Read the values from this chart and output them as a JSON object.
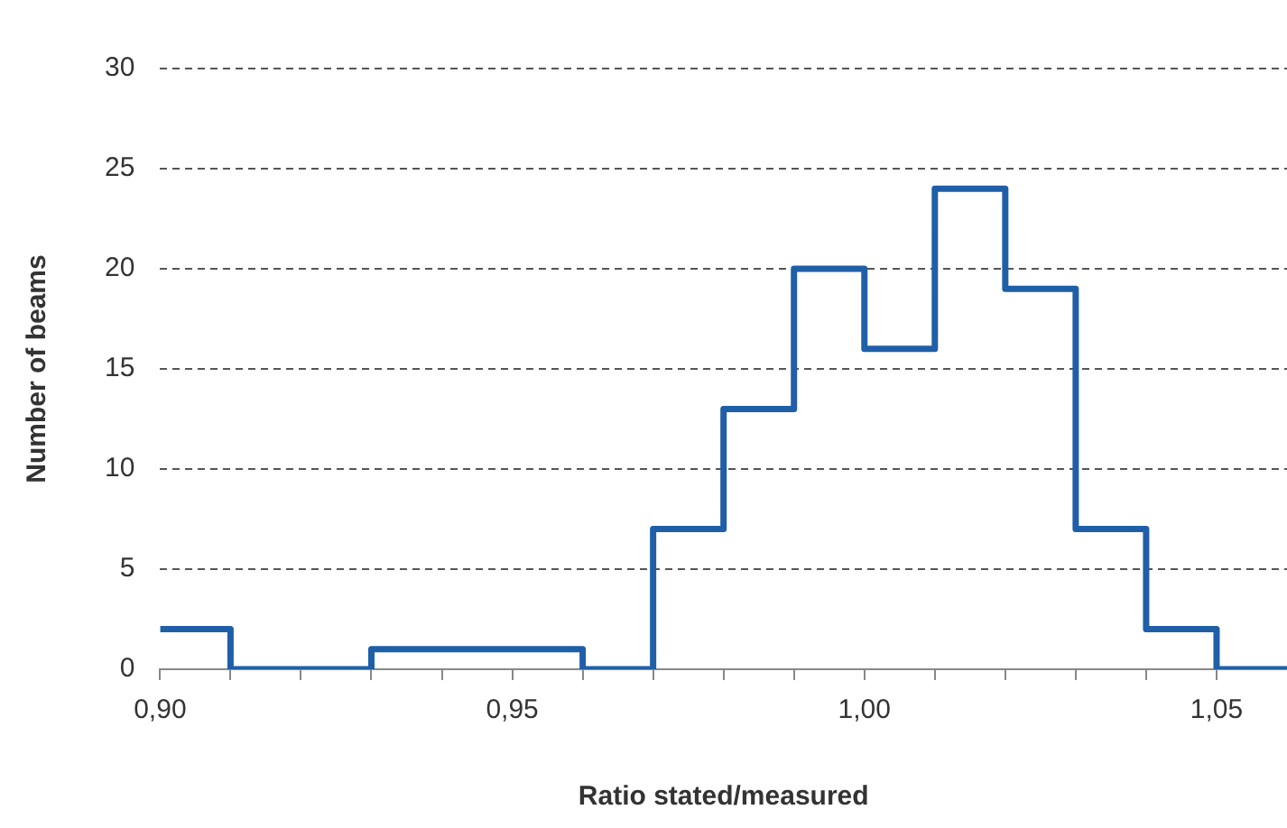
{
  "chart_data": {
    "type": "histogram",
    "xlabel": "Ratio stated/measured",
    "ylabel": "Number of beams",
    "bins": [
      0.9,
      0.91,
      0.92,
      0.93,
      0.94,
      0.95,
      0.96,
      0.97,
      0.98,
      0.99,
      1.0,
      1.01,
      1.02,
      1.03,
      1.04,
      1.05,
      1.06
    ],
    "values": [
      2,
      0,
      0,
      1,
      1,
      1,
      0,
      7,
      13,
      20,
      16,
      24,
      19,
      7,
      2,
      0
    ],
    "color": "#1f5fa8",
    "xlim": [
      0.9,
      1.06
    ],
    "xticks": [
      {
        "value": 0.9,
        "label": "0,90"
      },
      {
        "value": 0.91,
        "label": null
      },
      {
        "value": 0.92,
        "label": null
      },
      {
        "value": 0.93,
        "label": null
      },
      {
        "value": 0.94,
        "label": null
      },
      {
        "value": 0.95,
        "label": "0,95"
      },
      {
        "value": 0.96,
        "label": null
      },
      {
        "value": 0.97,
        "label": null
      },
      {
        "value": 0.98,
        "label": null
      },
      {
        "value": 0.99,
        "label": null
      },
      {
        "value": 1.0,
        "label": "1,00"
      },
      {
        "value": 1.01,
        "label": null
      },
      {
        "value": 1.02,
        "label": null
      },
      {
        "value": 1.03,
        "label": null
      },
      {
        "value": 1.04,
        "label": null
      },
      {
        "value": 1.05,
        "label": "1,05"
      }
    ],
    "ylim": [
      0,
      30
    ],
    "yticks": [
      0,
      5,
      10,
      15,
      20,
      25,
      30
    ],
    "grid": "y",
    "legend": false,
    "line_style": "solid",
    "marker": "none"
  }
}
